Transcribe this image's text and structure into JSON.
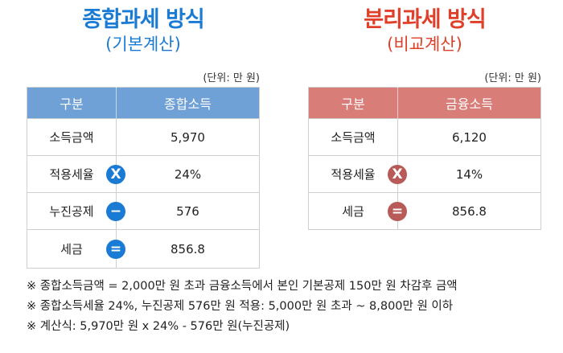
{
  "left": {
    "title": "종합과세 방식",
    "subtitle": "(기본계산)",
    "unit": "(단위: 만 원)",
    "header": [
      "구분",
      "종합소득"
    ],
    "rows": [
      {
        "label": "소득금액",
        "value": "5,970",
        "op": ""
      },
      {
        "label": "적용세율",
        "value": "24%",
        "op": "X"
      },
      {
        "label": "누진공제",
        "value": "576",
        "op": "−"
      },
      {
        "label": "세금",
        "value": "856.8",
        "op": "="
      }
    ]
  },
  "right": {
    "title": "분리과세 방식",
    "subtitle": "(비교계산)",
    "unit": "(단위: 만 원)",
    "header": [
      "구분",
      "금융소득"
    ],
    "rows": [
      {
        "label": "소득금액",
        "value": "6,120",
        "op": ""
      },
      {
        "label": "적용세율",
        "value": "14%",
        "op": "X"
      },
      {
        "label": "세금",
        "value": "856.8",
        "op": "="
      }
    ]
  },
  "notes": [
    "※ 종합소득금액 = 2,000만 원 초과 금융소득에서 본인 기본공제 150만 원 차감후 금액",
    "※ 종합소득세율 24%, 누진공제 576만 원 적용: 5,000만 원 초과 ~ 8,800만 원 이하",
    "※ 계산식: 5,970만 원 x 24% - 576만 원(누진공제)"
  ],
  "colors": {
    "left_accent": "#1a7bd5",
    "left_header": "#6fa0d6",
    "right_accent": "#e0402a",
    "right_header": "#d97d78",
    "right_operator": "#b85a57"
  }
}
